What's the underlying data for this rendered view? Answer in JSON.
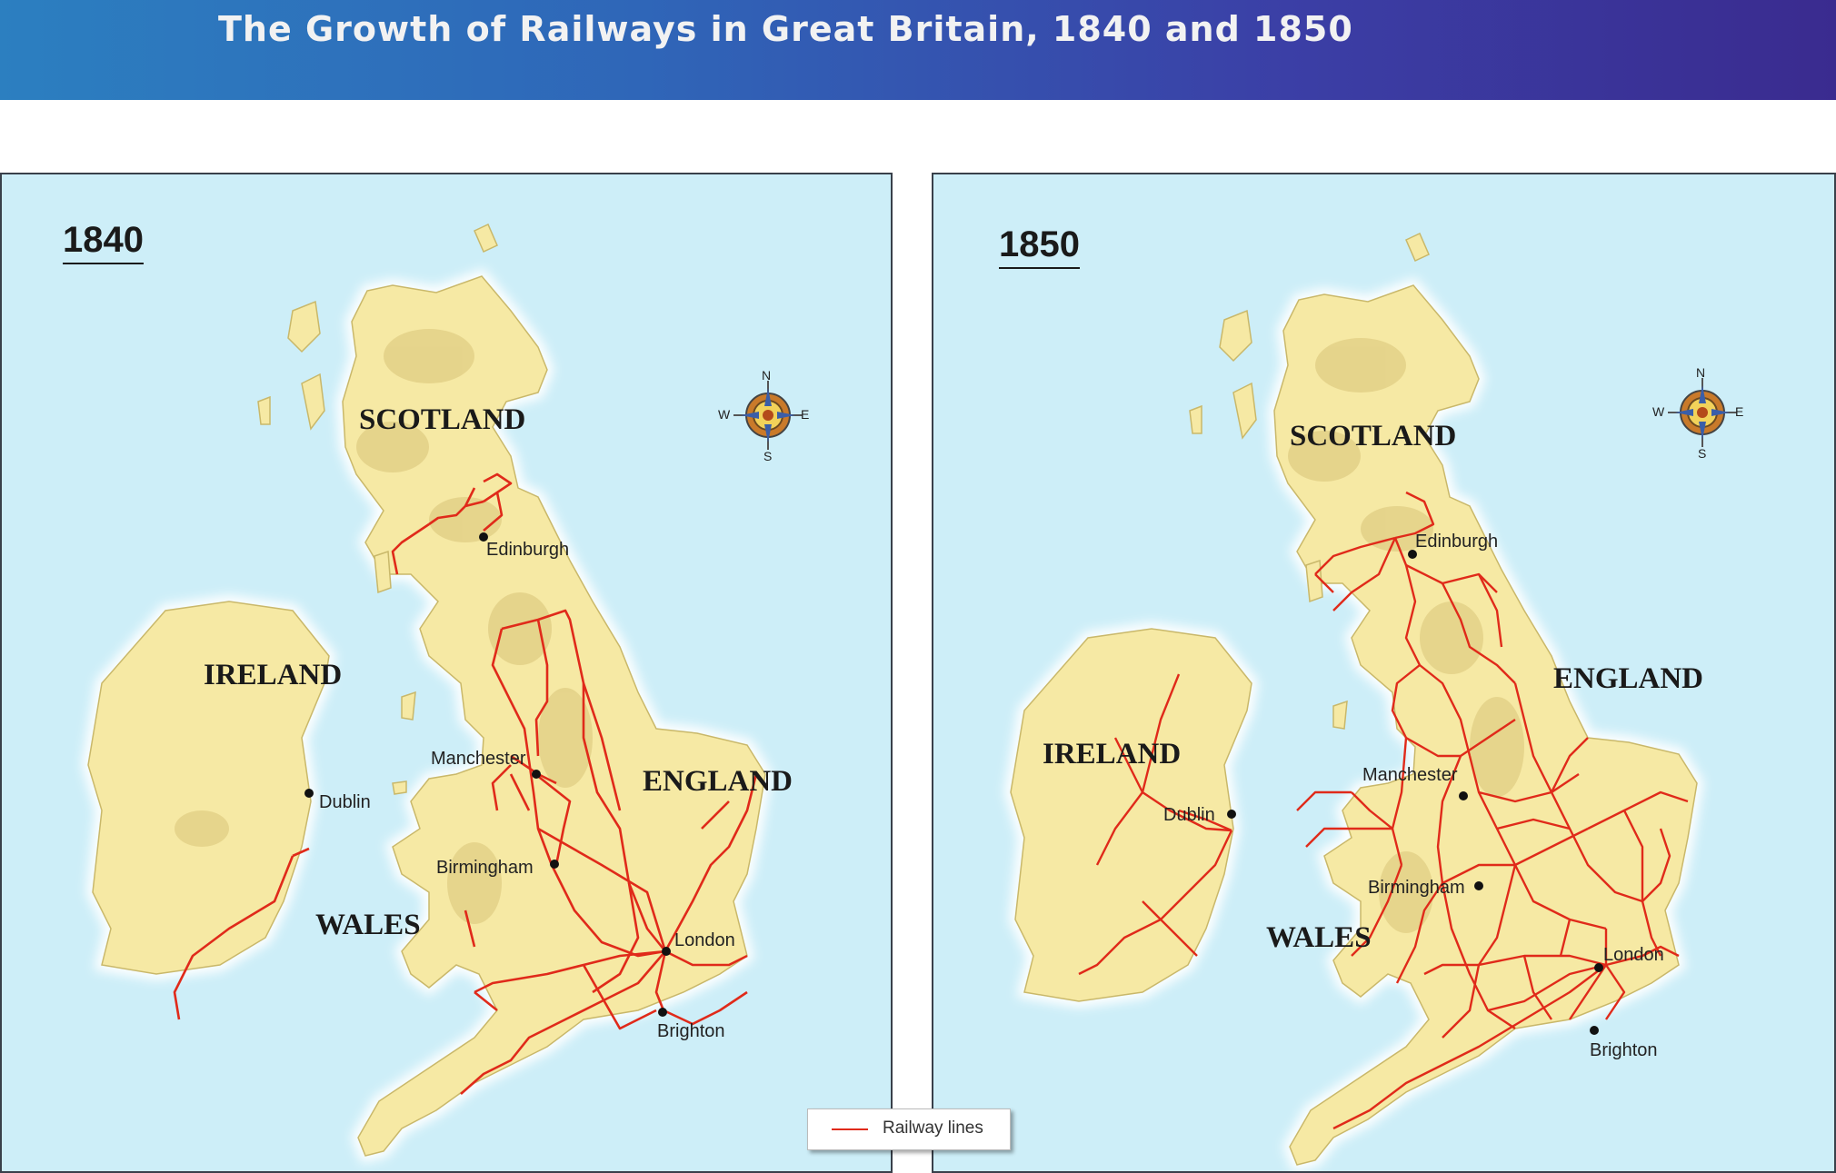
{
  "title": "The Growth of Railways in Great Britain, 1840 and 1850",
  "legend": {
    "label": "Railway lines",
    "color": "#e02a1a"
  },
  "colors": {
    "sea": "#cdeef8",
    "land": "#f6e9a4",
    "railway": "#e02a1a"
  },
  "compass": {
    "n": "N",
    "s": "S",
    "e": "E",
    "w": "W"
  },
  "maps": [
    {
      "year": "1840",
      "countries": {
        "scotland": "SCOTLAND",
        "ireland": "IRELAND",
        "england": "ENGLAND",
        "wales": "WALES"
      },
      "cities": {
        "edinburgh": "Edinburgh",
        "dublin": "Dublin",
        "manchester": "Manchester",
        "birmingham": "Birmingham",
        "london": "London",
        "brighton": "Brighton"
      }
    },
    {
      "year": "1850",
      "countries": {
        "scotland": "SCOTLAND",
        "ireland": "IRELAND",
        "england": "ENGLAND",
        "wales": "WALES"
      },
      "cities": {
        "edinburgh": "Edinburgh",
        "dublin": "Dublin",
        "manchester": "Manchester",
        "birmingham": "Birmingham",
        "london": "London",
        "brighton": "Brighton"
      }
    }
  ]
}
